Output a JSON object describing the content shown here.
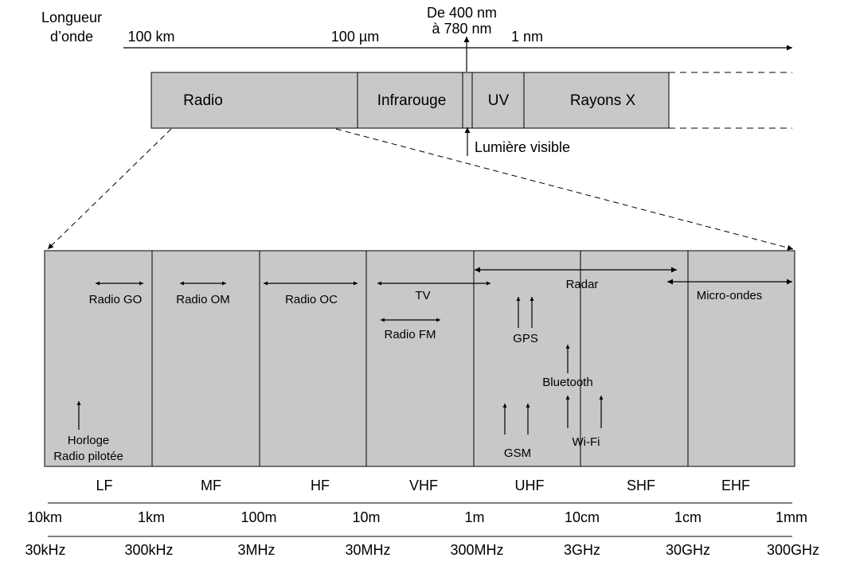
{
  "colors": {
    "band_fill": "#c8c8c8",
    "stroke": "#000000",
    "background": "#ffffff"
  },
  "wavelength_axis": {
    "title_line1": "Longueur",
    "title_line2": "d’onde",
    "ticks": [
      "100 km",
      "100 µm",
      "1 nm"
    ]
  },
  "visible_range": {
    "line1": "De 400 nm",
    "line2": "à 780 nm",
    "label": "Lumière visible"
  },
  "spectrum_bands": [
    "Radio",
    "Infrarouge",
    "UV",
    "Rayons X"
  ],
  "radio_bands": [
    "LF",
    "MF",
    "HF",
    "VHF",
    "UHF",
    "SHF",
    "EHF"
  ],
  "wavelength_scale": [
    "10km",
    "1km",
    "100m",
    "10m",
    "1m",
    "10cm",
    "1cm",
    "1mm"
  ],
  "frequency_scale": [
    "30kHz",
    "300kHz",
    "3MHz",
    "30MHz",
    "300MHz",
    "3GHz",
    "30GHz",
    "300GHz"
  ],
  "applications": {
    "radio_go": "Radio GO",
    "radio_om": "Radio OM",
    "radio_oc": "Radio OC",
    "tv": "TV",
    "radar": "Radar",
    "micro_ondes": "Micro-ondes",
    "radio_fm": "Radio FM",
    "gps": "GPS",
    "bluetooth": "Bluetooth",
    "gsm": "GSM",
    "wifi": "Wi-Fi",
    "horloge_line1": "Horloge",
    "horloge_line2": "Radio pilotée"
  },
  "icons": {
    "arrow": "arrow-icon",
    "double_arrow": "double-arrow-icon"
  }
}
